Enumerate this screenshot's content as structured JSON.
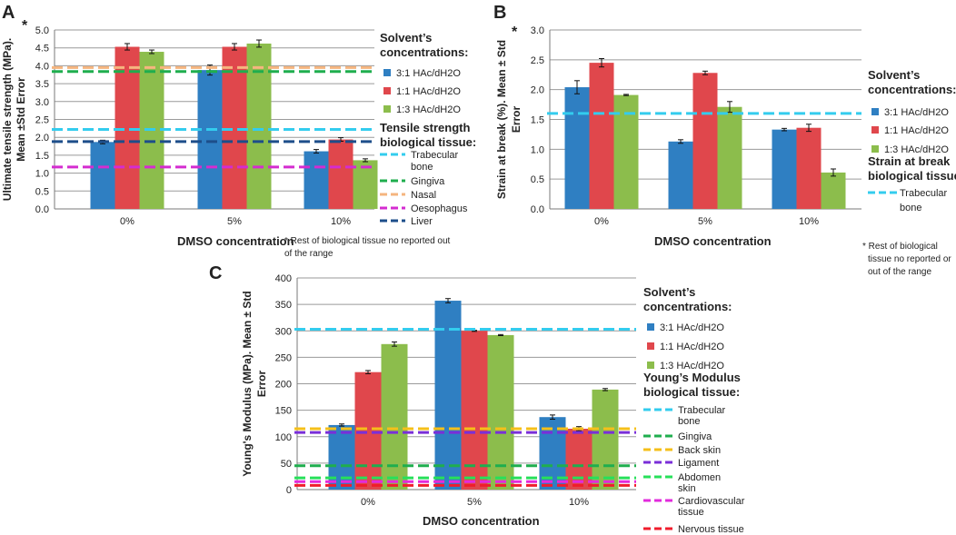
{
  "figure": {
    "series_colors": [
      "#2f7fc2",
      "#e0474c",
      "#8cbd4c"
    ],
    "grid_color": "#9a9a9a",
    "axis_color": "#7a7a7a"
  },
  "chart_data": [
    {
      "panel": "A",
      "type": "bar",
      "title": "",
      "asterisk": "*",
      "categories": [
        "0%",
        "5%",
        "10%"
      ],
      "series": [
        {
          "name": "3:1 HAc/dH2O",
          "values": [
            1.87,
            3.88,
            1.61
          ],
          "errors": [
            0.05,
            0.14,
            0.05
          ]
        },
        {
          "name": "1:1 HAc/dH2O",
          "values": [
            4.53,
            4.53,
            1.94
          ],
          "errors": [
            0.09,
            0.09,
            0.05
          ]
        },
        {
          "name": "1:3 HAc/dH2O",
          "values": [
            4.39,
            4.62,
            1.36
          ],
          "errors": [
            0.05,
            0.1,
            0.04
          ]
        }
      ],
      "ylim": [
        0,
        5
      ],
      "yticks": [
        "0.0",
        "0.5",
        "1.0",
        "1.5",
        "2.0",
        "2.5",
        "3.0",
        "3.5",
        "4.0",
        "4.5",
        "5.0"
      ],
      "ylabel_line1": "Ultimate tensile strength (MPa).",
      "ylabel_line2": "Mean ±Std Error",
      "xlabel": "DMSO concentration",
      "legend_title_1": "Solvent’s",
      "legend_title_1b": "concentrations:",
      "legend_title_2": "Tensile strength",
      "legend_title_2b": "biological tissue:",
      "reference_lines": [
        {
          "name": "Trabecular",
          "name2": "bone",
          "value": 2.22,
          "color": "#33ccee"
        },
        {
          "name": "Gingiva",
          "name2": "",
          "value": 3.84,
          "color": "#1fae4e"
        },
        {
          "name": "Nasal",
          "name2": "",
          "value": 3.95,
          "color": "#f5b57f"
        },
        {
          "name": "Oesophagus",
          "name2": "",
          "value": 1.17,
          "color": "#d42cd0"
        },
        {
          "name": "Liver",
          "name2": "",
          "value": 1.88,
          "color": "#1d4e8a"
        }
      ],
      "footnote_1": "* Rest of biological tissue no reported out",
      "footnote_2": "of the range"
    },
    {
      "panel": "B",
      "type": "bar",
      "title": "",
      "asterisk": "*",
      "categories": [
        "0%",
        "5%",
        "10%"
      ],
      "series": [
        {
          "name": "3:1 HAc/dH2O",
          "values": [
            2.04,
            1.13,
            1.33
          ],
          "errors": [
            0.11,
            0.03,
            0.02
          ]
        },
        {
          "name": "1:1 HAc/dH2O",
          "values": [
            2.45,
            2.28,
            1.36
          ],
          "errors": [
            0.07,
            0.03,
            0.06
          ]
        },
        {
          "name": "1:3 HAc/dH2O",
          "values": [
            1.91,
            1.71,
            0.61
          ],
          "errors": [
            0.01,
            0.09,
            0.06
          ]
        }
      ],
      "ylim": [
        0,
        3
      ],
      "yticks": [
        "0.0",
        "0.5",
        "1.0",
        "1.5",
        "2.0",
        "2.5",
        "3.0"
      ],
      "ylabel_line1": "Strain at break (%). Mean ± Std",
      "ylabel_line2": "Error",
      "xlabel": "DMSO concentration",
      "legend_title_1": "Solvent’s",
      "legend_title_1b": "concentrations:",
      "legend_title_2": "Strain at break",
      "legend_title_2b": "biological tissue:",
      "reference_lines": [
        {
          "name": "Trabecular",
          "name2": "bone",
          "value": 1.6,
          "color": "#33ccee"
        }
      ],
      "footnote_1": "* Rest of biological",
      "footnote_2": "tissue no reported or",
      "footnote_3": "out of the range"
    },
    {
      "panel": "C",
      "type": "bar",
      "title": "",
      "categories": [
        "0%",
        "5%",
        "10%"
      ],
      "series": [
        {
          "name": "3:1 HAc/dH2O",
          "values": [
            122,
            357,
            137
          ],
          "errors": [
            2,
            4,
            4
          ]
        },
        {
          "name": "1:1 HAc/dH2O",
          "values": [
            222,
            300,
            115
          ],
          "errors": [
            3,
            1,
            4
          ]
        },
        {
          "name": "1:3 HAc/dH2O",
          "values": [
            275,
            292,
            189
          ],
          "errors": [
            4,
            1,
            2
          ]
        }
      ],
      "ylim": [
        0,
        400
      ],
      "yticks": [
        "0",
        "50",
        "100",
        "150",
        "200",
        "250",
        "300",
        "350",
        "400"
      ],
      "ylabel_line1": "Young's Modulus (MPa). Mean ± Std",
      "ylabel_line2": "Error",
      "xlabel": "DMSO concentration",
      "legend_title_1": "Solvent’s",
      "legend_title_1b": "concentrations:",
      "legend_title_2": "Young’s Modulus",
      "legend_title_2b": "biological tissue:",
      "reference_lines": [
        {
          "name": "Trabecular",
          "name2": "bone",
          "value": 303,
          "color": "#33ccee"
        },
        {
          "name": "Gingiva",
          "name2": "",
          "value": 45,
          "color": "#1fae4e"
        },
        {
          "name": "Back skin",
          "name2": "",
          "value": 115,
          "color": "#f5bf1a"
        },
        {
          "name": "Ligament",
          "name2": "",
          "value": 108,
          "color": "#7a2fd8"
        },
        {
          "name": "Abdomen",
          "name2": "skin",
          "value": 22,
          "color": "#27e05a"
        },
        {
          "name": "Cardiovascular",
          "name2": "tissue",
          "value": 15,
          "color": "#e22bdc"
        },
        {
          "name": "Nervous tissue",
          "name2": "",
          "value": 8,
          "color": "#f01d2c"
        }
      ]
    }
  ]
}
